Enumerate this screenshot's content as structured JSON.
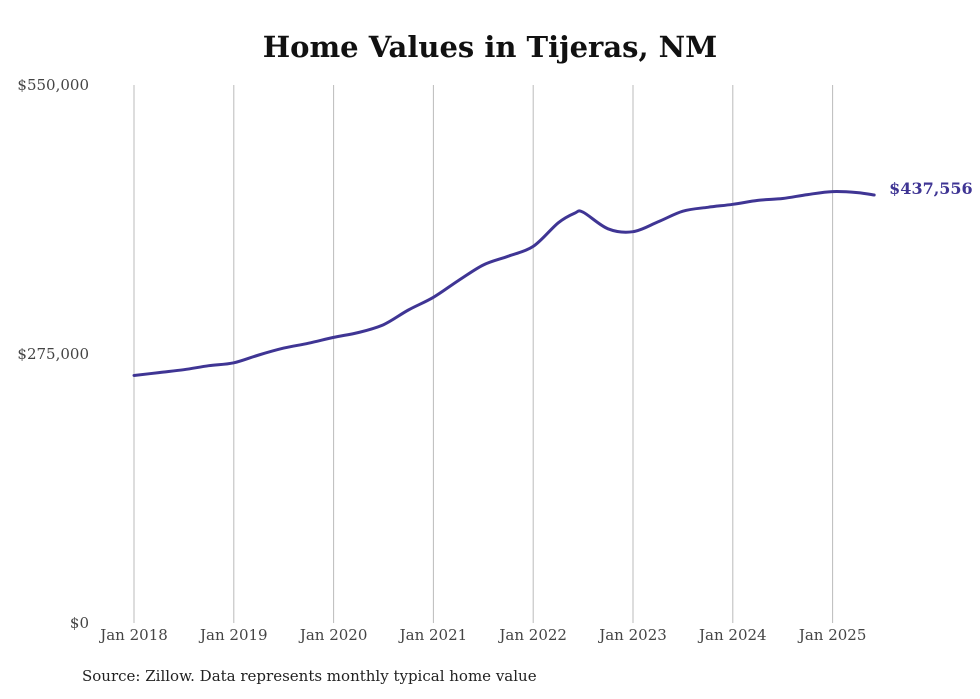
{
  "chart_data": {
    "type": "line",
    "title": "Home Values in Tijeras, NM",
    "xlabel": "",
    "ylabel": "",
    "ylim": [
      0,
      550000
    ],
    "y_ticks": [
      {
        "value": 0,
        "label": "$0"
      },
      {
        "value": 275000,
        "label": "$275,000"
      },
      {
        "value": 550000,
        "label": "$550,000"
      }
    ],
    "x_ticks": [
      {
        "value": 2018,
        "label": "Jan 2018"
      },
      {
        "value": 2019,
        "label": "Jan 2019"
      },
      {
        "value": 2020,
        "label": "Jan 2020"
      },
      {
        "value": 2021,
        "label": "Jan 2021"
      },
      {
        "value": 2022,
        "label": "Jan 2022"
      },
      {
        "value": 2023,
        "label": "Jan 2023"
      },
      {
        "value": 2024,
        "label": "Jan 2024"
      },
      {
        "value": 2025,
        "label": "Jan 2025"
      }
    ],
    "grid": {
      "vertical": true,
      "horizontal": false
    },
    "series": [
      {
        "color": "#3f3594",
        "x": [
          "2018-01",
          "2018-04",
          "2018-07",
          "2018-10",
          "2019-01",
          "2019-04",
          "2019-07",
          "2019-10",
          "2020-01",
          "2020-04",
          "2020-07",
          "2020-10",
          "2021-01",
          "2021-04",
          "2021-07",
          "2021-10",
          "2022-01",
          "2022-04",
          "2022-06",
          "2022-07",
          "2022-10",
          "2023-01",
          "2023-04",
          "2023-07",
          "2023-10",
          "2024-01",
          "2024-04",
          "2024-07",
          "2024-10",
          "2025-01",
          "2025-04",
          "2025-06"
        ],
        "y": [
          253000,
          256000,
          259000,
          263000,
          266000,
          274000,
          281000,
          286000,
          292000,
          297000,
          305000,
          320000,
          333000,
          350000,
          366000,
          375000,
          385000,
          409000,
          419000,
          420000,
          403000,
          400000,
          410000,
          421000,
          425000,
          428000,
          432000,
          434000,
          438000,
          441000,
          440000,
          437556
        ]
      }
    ],
    "end_label": "$437,556",
    "source": "Source: Zillow. Data represents monthly typical home value"
  }
}
